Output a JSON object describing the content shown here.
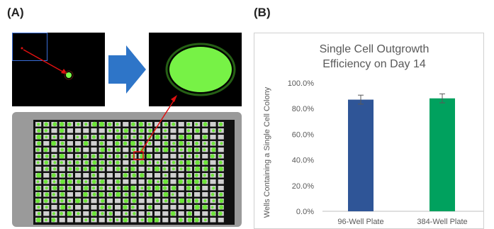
{
  "panels": {
    "a_label": "(A)",
    "b_label": "(B)"
  },
  "chart_data": {
    "type": "bar",
    "title": "Single Cell Outgrowth Efficiency on Day 14",
    "title_lines": [
      "Single Cell Outgrowth",
      "Efficiency on Day 14"
    ],
    "ylabel": "Wells Containing a Single Cell Colony",
    "xlabel": "",
    "categories": [
      "96-Well Plate",
      "384-Well Plate"
    ],
    "values": [
      87.0,
      88.0
    ],
    "errors": [
      3.5,
      3.5
    ],
    "colors": [
      "#2f5597",
      "#00a15e"
    ],
    "ylim": [
      0,
      100
    ],
    "yticks": [
      "0.0%",
      "20.0%",
      "40.0%",
      "60.0%",
      "80.0%",
      "100.0%"
    ],
    "grid": false
  },
  "colors": {
    "green_fluor": "#7dff4a",
    "arrow_blue": "#2e75c8",
    "marker_red": "#e01010"
  }
}
